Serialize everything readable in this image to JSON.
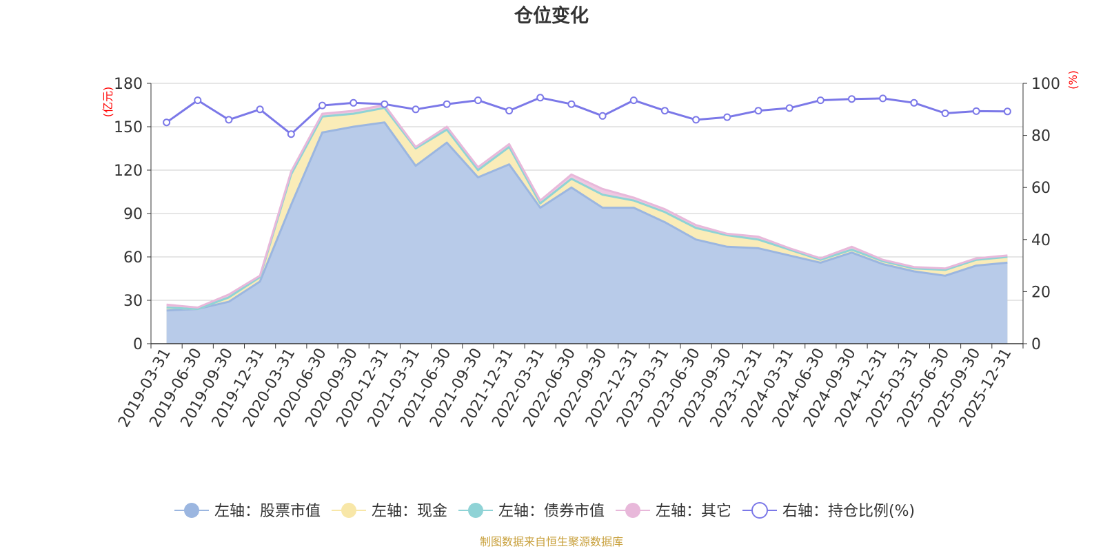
{
  "chart_data": {
    "type": "area",
    "title": "仓位变化",
    "left_axis_unit": "(亿元)",
    "right_axis_unit": "(%)",
    "left_ylim": [
      0,
      180
    ],
    "left_ticks": [
      0,
      30,
      60,
      90,
      120,
      150,
      180
    ],
    "right_ylim": [
      0,
      100
    ],
    "right_ticks": [
      0,
      20,
      40,
      60,
      80,
      100
    ],
    "categories": [
      "2019-03-31",
      "2019-06-30",
      "2019-09-30",
      "2019-12-31",
      "2020-03-31",
      "2020-06-30",
      "2020-09-30",
      "2020-12-31",
      "2021-03-31",
      "2021-06-30",
      "2021-09-30",
      "2021-12-31",
      "2022-03-31",
      "2022-06-30",
      "2022-09-30",
      "2022-12-31",
      "2023-03-31",
      "2023-06-30",
      "2023-09-30",
      "2023-12-31",
      "2024-03-31",
      "2024-06-30",
      "2024-09-30",
      "2024-12-31",
      "2025-03-31",
      "2025-06-30",
      "2025-09-30",
      "2025-12-31"
    ],
    "series": [
      {
        "name": "左轴：股票市值",
        "axis": "left",
        "type": "stacked-area",
        "color": "#9bb6e0",
        "fill": "#b8cbe9",
        "values": [
          23,
          24,
          29,
          43,
          96,
          146,
          150,
          153,
          123,
          139,
          115,
          124,
          94,
          108,
          94,
          94,
          84,
          72,
          67,
          66,
          61,
          56,
          63,
          55,
          50,
          47,
          54,
          56
        ]
      },
      {
        "name": "左轴：现金",
        "axis": "left",
        "type": "stacked-area",
        "color": "#f8e7a8",
        "fill": "#faecb8",
        "values": [
          2,
          0,
          3,
          3,
          21,
          11,
          9,
          10,
          12,
          9,
          5,
          12,
          3,
          6,
          9,
          5,
          7,
          8,
          8,
          6,
          4,
          2,
          2,
          2,
          2,
          4,
          4,
          4
        ]
      },
      {
        "name": "左轴：债券市值",
        "axis": "left",
        "type": "stacked-area",
        "color": "#8fd3d6",
        "fill": "#a8dde0",
        "values": [
          0,
          0,
          0,
          0,
          0,
          0,
          0,
          0,
          0,
          0,
          0,
          0,
          0,
          0,
          0,
          0,
          0,
          0,
          0,
          0,
          0,
          0,
          0,
          0,
          0,
          0,
          0,
          0
        ]
      },
      {
        "name": "左轴：其它",
        "axis": "left",
        "type": "stacked-area",
        "color": "#e8b8da",
        "fill": "#efc8e2",
        "values": [
          2,
          1,
          2,
          1,
          2,
          2,
          2,
          2,
          1,
          2,
          2,
          2,
          2,
          3,
          4,
          2,
          2,
          2,
          1,
          2,
          1,
          1,
          2,
          1,
          1,
          1,
          1,
          1
        ]
      },
      {
        "name": "右轴：持仓比例(%)",
        "axis": "right",
        "type": "line",
        "color": "#7b78e8",
        "values": [
          85,
          93.5,
          86,
          90,
          80.5,
          91.5,
          92.5,
          92,
          90,
          92,
          93.5,
          89.5,
          94.5,
          92,
          87.5,
          93.5,
          89.5,
          86,
          87,
          89.5,
          90.5,
          93.5,
          94,
          94.2,
          92.5,
          88.5,
          89.3,
          89.2
        ]
      }
    ]
  },
  "legend": [
    {
      "label": "左轴：股票市值",
      "color": "#9bb6e0",
      "marker": "filled-circle"
    },
    {
      "label": "左轴：现金",
      "color": "#f8e7a8",
      "marker": "filled-circle"
    },
    {
      "label": "左轴：债券市值",
      "color": "#8fd3d6",
      "marker": "filled-circle"
    },
    {
      "label": "左轴：其它",
      "color": "#e8b8da",
      "marker": "filled-circle"
    },
    {
      "label": "右轴：持仓比例(%)",
      "color": "#7b78e8",
      "marker": "hollow-circle"
    }
  ],
  "source_note": "制图数据来自恒生聚源数据库"
}
